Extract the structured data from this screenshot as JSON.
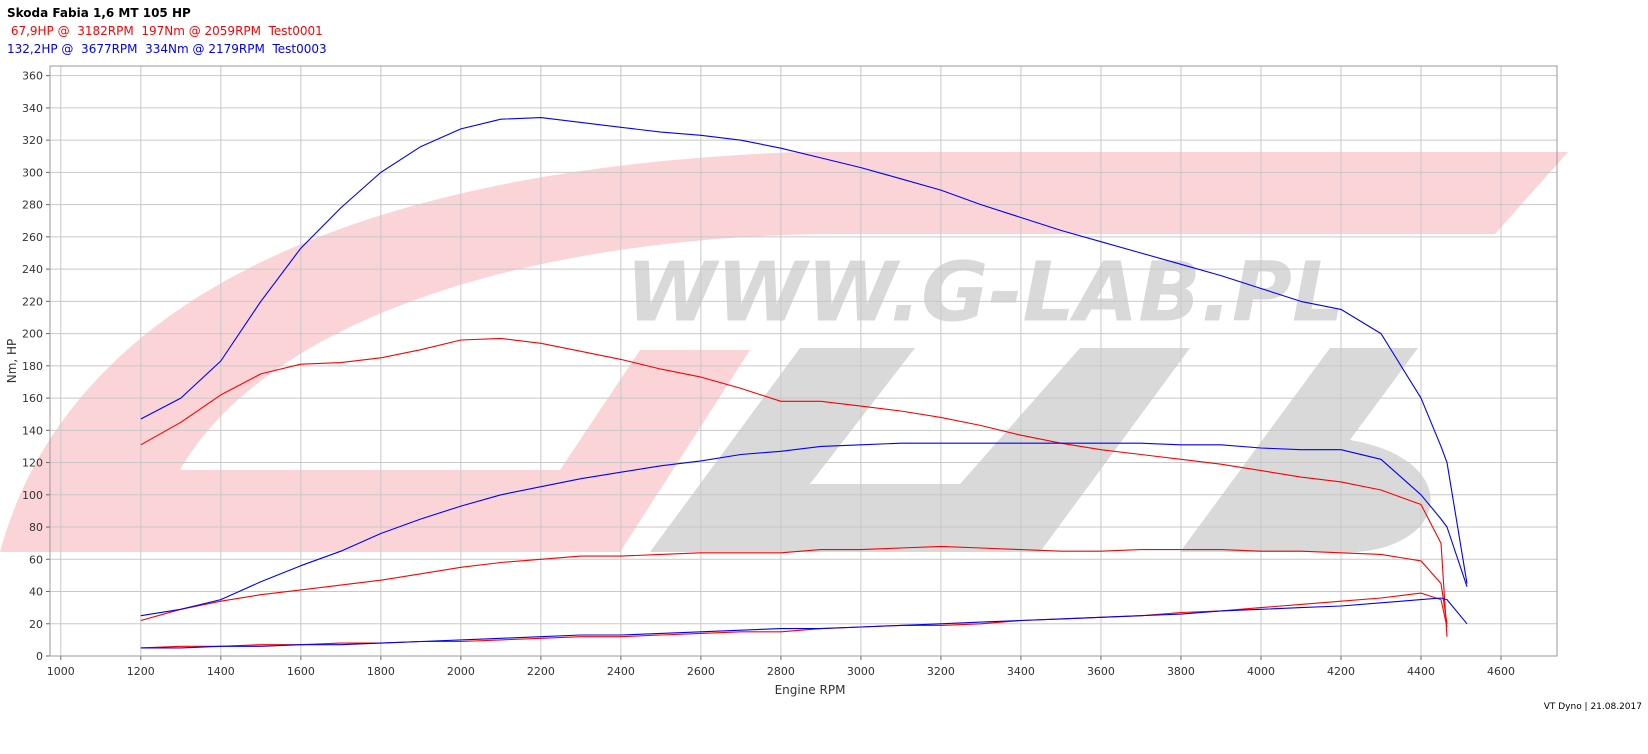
{
  "chart_data": {
    "type": "line",
    "title": "Skoda Fabia 1,6 MT 105 HP",
    "legend": [
      {
        "label": " 67,9HP @  3182RPM  197Nm @ 2059RPM  Test0001",
        "color": "#ff0000"
      },
      {
        "label": "132,2HP @  3677RPM  334Nm @ 2179RPM  Test0003",
        "color": "#0000ff"
      }
    ],
    "watermark": "WWW.G-LAB.PL",
    "x_label": "Engine RPM",
    "y_label": "Nm, HP",
    "note": "VT Dyno | 21.08.2017",
    "x": [
      1200,
      1300,
      1400,
      1500,
      1600,
      1700,
      1800,
      1900,
      2000,
      2100,
      2200,
      2300,
      2400,
      2500,
      2600,
      2700,
      2800,
      2900,
      3000,
      3100,
      3200,
      3300,
      3400,
      3500,
      3600,
      3700,
      3800,
      3900,
      4000,
      4100,
      4200,
      4300,
      4400,
      4450,
      4465,
      4515
    ],
    "series": [
      {
        "color": "#ff0000",
        "values": [
          131,
          145,
          162,
          175,
          181,
          182,
          185,
          190,
          196,
          197,
          194,
          189,
          184,
          178,
          173,
          166,
          158,
          158,
          155,
          152,
          148,
          143,
          137,
          132,
          128,
          125,
          122,
          119,
          115,
          111,
          108,
          103,
          94,
          70,
          12,
          null
        ]
      },
      {
        "color": "#ff0000",
        "values": [
          22,
          29,
          34,
          38,
          41,
          44,
          47,
          51,
          55,
          58,
          60,
          62,
          62,
          63,
          64,
          64,
          64,
          66,
          66,
          67,
          68,
          67,
          66,
          65,
          65,
          66,
          66,
          66,
          65,
          65,
          64,
          63,
          59,
          45,
          20,
          null
        ]
      },
      {
        "color": "#ff0000",
        "values": [
          5,
          6,
          6,
          7,
          7,
          8,
          8,
          9,
          9,
          10,
          11,
          12,
          12,
          13,
          14,
          15,
          15,
          17,
          18,
          19,
          19,
          20,
          22,
          23,
          24,
          25,
          27,
          28,
          30,
          32,
          34,
          36,
          39,
          35,
          18,
          null
        ]
      },
      {
        "color": "#0000ff",
        "values": [
          147,
          160,
          183,
          220,
          253,
          278,
          300,
          316,
          327,
          333,
          334,
          331,
          328,
          325,
          323,
          320,
          315,
          309,
          303,
          296,
          289,
          280,
          272,
          264,
          257,
          250,
          243,
          236,
          228,
          220,
          215,
          200,
          160,
          130,
          120,
          45
        ]
      },
      {
        "color": "#0000ff",
        "values": [
          25,
          29,
          35,
          46,
          56,
          65,
          76,
          85,
          93,
          100,
          105,
          110,
          114,
          118,
          121,
          125,
          127,
          130,
          131,
          132,
          132,
          132,
          132,
          132,
          132,
          132,
          131,
          131,
          129,
          128,
          128,
          122,
          100,
          85,
          80,
          43
        ]
      },
      {
        "color": "#0000ff",
        "values": [
          5,
          5,
          6,
          6,
          7,
          7,
          8,
          9,
          10,
          11,
          12,
          13,
          13,
          14,
          15,
          16,
          17,
          17,
          18,
          19,
          20,
          21,
          22,
          23,
          24,
          25,
          26,
          28,
          29,
          30,
          31,
          33,
          35,
          36,
          35,
          20
        ]
      }
    ],
    "xlim": [
      973,
      4740
    ],
    "xticks": [
      1000,
      1200,
      1400,
      1600,
      1800,
      2000,
      2200,
      2400,
      2600,
      2800,
      3000,
      3200,
      3400,
      3600,
      3800,
      4000,
      4200,
      4400,
      4600
    ],
    "ylim": [
      0,
      366
    ],
    "yticks": [
      0,
      20,
      40,
      60,
      80,
      100,
      120,
      140,
      160,
      180,
      200,
      220,
      240,
      260,
      280,
      300,
      320,
      340,
      360
    ],
    "grid": true
  }
}
